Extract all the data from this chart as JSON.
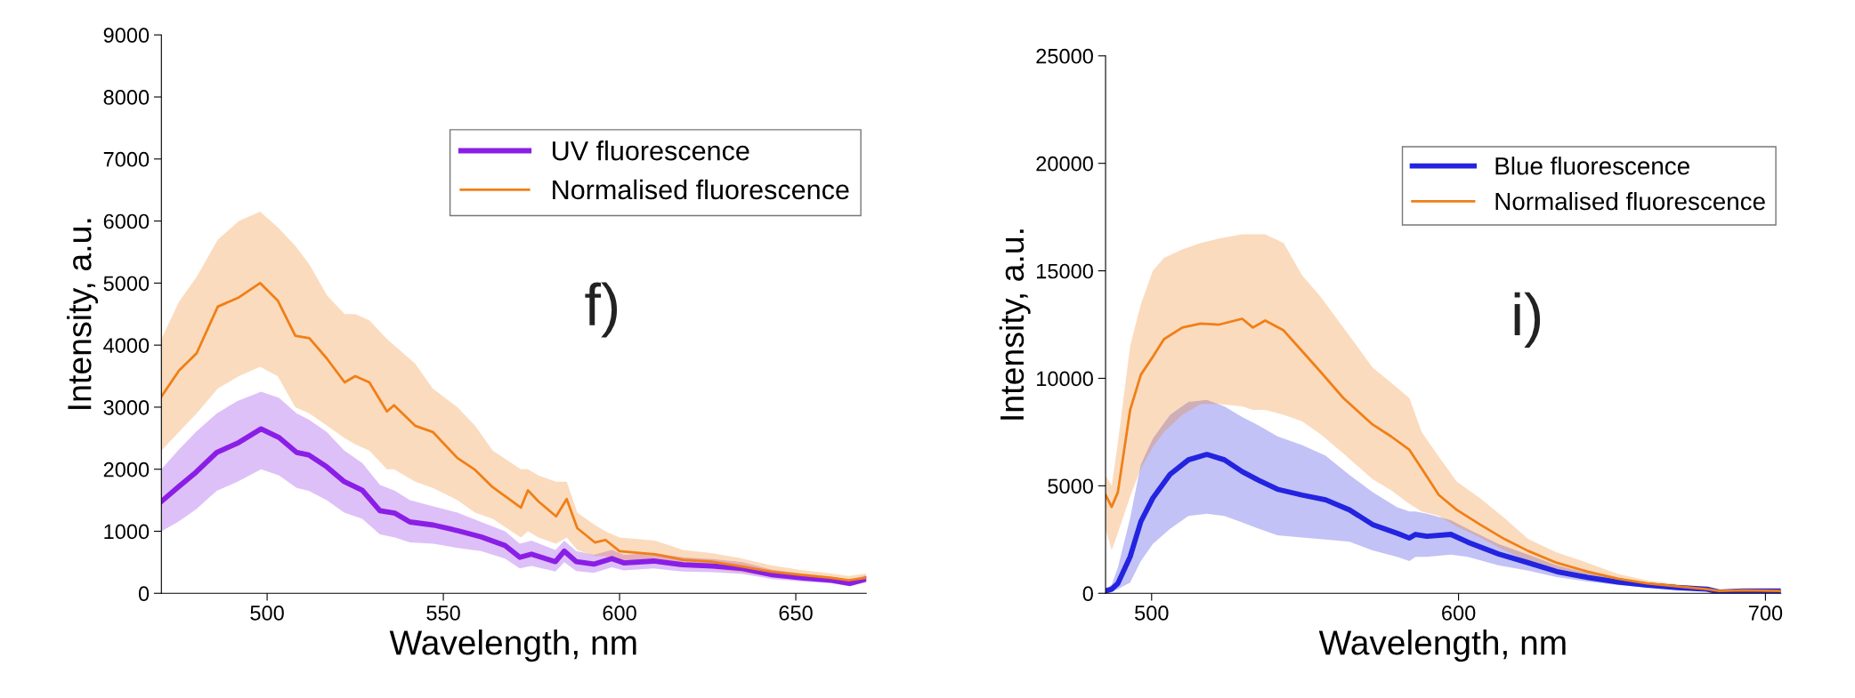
{
  "chart_data": [
    {
      "type": "line",
      "xlabel": "Wavelength, nm",
      "ylabel": "Intensity, a.u.",
      "xlim": [
        470,
        670
      ],
      "ylim": [
        0,
        9000
      ],
      "xticks": [
        500,
        550,
        600,
        650
      ],
      "yticks": [
        0,
        1000,
        2000,
        3000,
        4000,
        5000,
        6000,
        7000,
        8000,
        9000
      ],
      "legend": "top right",
      "grid": false,
      "annotations": [
        "f)"
      ],
      "series": [
        {
          "name": "UV fluorescence",
          "color": "#8a1ee6",
          "x": [
            470,
            474.7,
            479.8,
            485.7,
            491.6,
            498.3,
            503.4,
            508.4,
            511.8,
            516.9,
            521.9,
            527,
            532,
            536.3,
            540.5,
            547.2,
            554,
            560.7,
            567.5,
            571.7,
            575,
            581.8,
            584.3,
            587.7,
            592.7,
            597.8,
            601.2,
            609.6,
            618,
            626.5,
            634.9,
            643.3,
            651.8,
            660.2,
            665.3,
            670
          ],
          "values": [
            1480,
            1710,
            1950,
            2270,
            2420,
            2650,
            2510,
            2270,
            2230,
            2040,
            1800,
            1660,
            1330,
            1290,
            1150,
            1100,
            1010,
            910,
            770,
            580,
            630,
            510,
            680,
            510,
            470,
            560,
            490,
            520,
            460,
            440,
            400,
            300,
            250,
            210,
            160,
            230
          ],
          "upper": [
            2000,
            2300,
            2600,
            2900,
            3100,
            3250,
            3150,
            2900,
            2800,
            2600,
            2300,
            2100,
            1750,
            1650,
            1500,
            1400,
            1300,
            1150,
            1000,
            800,
            850,
            700,
            850,
            680,
            620,
            700,
            620,
            650,
            580,
            550,
            500,
            380,
            320,
            270,
            220,
            290
          ],
          "lower": [
            1000,
            1150,
            1350,
            1650,
            1800,
            2000,
            1900,
            1700,
            1650,
            1500,
            1300,
            1200,
            950,
            900,
            820,
            800,
            730,
            680,
            560,
            400,
            440,
            350,
            500,
            360,
            330,
            420,
            370,
            400,
            350,
            340,
            310,
            230,
            190,
            160,
            110,
            180
          ]
        },
        {
          "name": "Normalised fluorescence",
          "color": "#f07f16",
          "x": [
            470,
            475,
            480,
            486,
            492,
            498,
            503,
            508,
            512,
            517,
            522,
            525,
            529,
            534,
            536,
            542,
            547,
            554,
            559,
            564,
            572,
            574,
            577,
            582,
            585,
            588,
            593,
            596,
            600,
            610,
            618,
            626,
            634,
            643,
            651,
            660,
            665,
            670
          ],
          "values": [
            3170,
            3590,
            3870,
            4620,
            4770,
            5000,
            4720,
            4150,
            4110,
            3780,
            3400,
            3500,
            3400,
            2930,
            3030,
            2700,
            2600,
            2180,
            1990,
            1710,
            1380,
            1660,
            1480,
            1240,
            1520,
            1050,
            820,
            860,
            680,
            630,
            540,
            510,
            440,
            350,
            300,
            250,
            210,
            250
          ],
          "upper": [
            4100,
            4700,
            5100,
            5700,
            6000,
            6150,
            5900,
            5600,
            5300,
            4800,
            4500,
            4500,
            4400,
            4100,
            4000,
            3700,
            3300,
            3000,
            2700,
            2300,
            2000,
            2000,
            1900,
            1800,
            1800,
            1300,
            1100,
            1000,
            900,
            850,
            700,
            650,
            570,
            450,
            380,
            320,
            280,
            320
          ],
          "lower": [
            2300,
            2600,
            2900,
            3300,
            3500,
            3650,
            3500,
            3000,
            2900,
            2700,
            2500,
            2400,
            2300,
            2000,
            2000,
            1800,
            1700,
            1500,
            1300,
            1200,
            900,
            1000,
            900,
            800,
            900,
            700,
            600,
            600,
            500,
            480,
            420,
            400,
            340,
            270,
            220,
            180,
            150,
            200
          ]
        }
      ]
    },
    {
      "type": "line",
      "xlabel": "Wavelength, nm",
      "ylabel": "Intensity, a.u.",
      "xlim": [
        485,
        705
      ],
      "ylim": [
        0,
        25000
      ],
      "xticks": [
        500,
        600,
        700
      ],
      "yticks": [
        0,
        5000,
        10000,
        15000,
        20000,
        25000
      ],
      "legend": "top right",
      "grid": false,
      "annotations": [
        "i)"
      ],
      "series": [
        {
          "name": "Blue fluorescence",
          "color": "#2323e0",
          "x": [
            485,
            487,
            489,
            493,
            496.5,
            500.4,
            506,
            512,
            518,
            523.7,
            529.5,
            535,
            541,
            549,
            556.7,
            564.5,
            572,
            580,
            584,
            586,
            589.7,
            597.5,
            603,
            613,
            622.7,
            632,
            642,
            652,
            661.5,
            671,
            681,
            685,
            692.6,
            705
          ],
          "values": [
            110,
            190,
            460,
            1700,
            3340,
            4430,
            5530,
            6210,
            6460,
            6210,
            5660,
            5250,
            4840,
            4570,
            4350,
            3880,
            3200,
            2790,
            2570,
            2740,
            2650,
            2740,
            2380,
            1830,
            1420,
            1010,
            740,
            520,
            380,
            270,
            190,
            60,
            110,
            110
          ],
          "upper": [
            200,
            400,
            1200,
            3500,
            6000,
            7200,
            8300,
            8900,
            9000,
            8700,
            8200,
            7800,
            7300,
            6900,
            6400,
            5500,
            4700,
            4000,
            3800,
            3800,
            3700,
            3400,
            3000,
            2300,
            1800,
            1300,
            950,
            680,
            500,
            360,
            250,
            120,
            160,
            160
          ],
          "lower": [
            50,
            80,
            200,
            500,
            1500,
            2300,
            3000,
            3600,
            3700,
            3600,
            3300,
            3000,
            2700,
            2600,
            2500,
            2400,
            2000,
            1700,
            1500,
            1700,
            1700,
            1800,
            1700,
            1300,
            1050,
            750,
            550,
            380,
            270,
            190,
            130,
            20,
            70,
            70
          ]
        },
        {
          "name": "Normalised fluorescence",
          "color": "#f07f16",
          "x": [
            485,
            487,
            489,
            493,
            496.5,
            500.4,
            504,
            510,
            516,
            522,
            529.5,
            533,
            537,
            543,
            549,
            555,
            562.5,
            572,
            578,
            584,
            588,
            593.6,
            599.4,
            607,
            615,
            622.7,
            632,
            642,
            652,
            661.5,
            671,
            681,
            685,
            692.6,
            705
          ],
          "values": [
            4570,
            4020,
            4700,
            8530,
            10170,
            11000,
            11820,
            12360,
            12550,
            12500,
            12770,
            12360,
            12690,
            12230,
            11270,
            10310,
            9080,
            7850,
            7300,
            6670,
            5800,
            4570,
            3880,
            3200,
            2520,
            1970,
            1420,
            1010,
            680,
            460,
            330,
            190,
            110,
            140,
            110
          ],
          "upper": [
            5500,
            5000,
            7000,
            11500,
            13450,
            15000,
            15600,
            16000,
            16300,
            16500,
            16700,
            16700,
            16700,
            16300,
            14800,
            13800,
            12360,
            10500,
            9800,
            9080,
            7500,
            6350,
            5200,
            4430,
            3500,
            2520,
            1900,
            1420,
            900,
            600,
            420,
            250,
            160,
            180,
            150
          ],
          "lower": [
            3000,
            2000,
            2800,
            4500,
            5800,
            6800,
            7500,
            8300,
            8800,
            8800,
            8700,
            8530,
            8530,
            8300,
            8000,
            7400,
            6500,
            5300,
            4800,
            4160,
            3800,
            3600,
            3100,
            2600,
            2000,
            1500,
            1000,
            700,
            480,
            320,
            240,
            130,
            70,
            100,
            70
          ]
        }
      ]
    }
  ]
}
